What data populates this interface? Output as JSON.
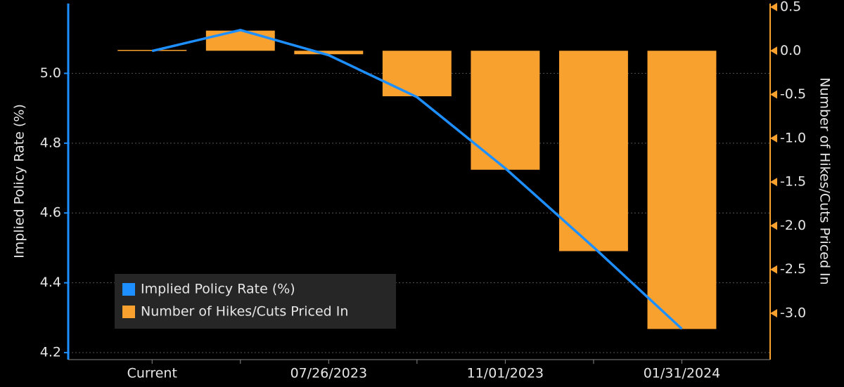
{
  "chart_data": {
    "type": "combo",
    "y_label": "Implied Policy Rate (%)",
    "y2_label": "Number of Hikes/Cuts Priced In",
    "categories": [
      "Current",
      null,
      "07/26/2023",
      null,
      "11/01/2023",
      null,
      "01/31/2024"
    ],
    "series": [
      {
        "name": "Implied Policy Rate (%)",
        "type": "line",
        "color": "#1e8fff",
        "axis": "y",
        "values": [
          5.064,
          5.124,
          5.052,
          4.932,
          4.728,
          4.502,
          4.268
        ]
      },
      {
        "name": "Number of Hikes/Cuts Priced In",
        "type": "bar",
        "color": "#f9a12e",
        "axis": "y2",
        "values": [
          0.01,
          0.23,
          -0.04,
          -0.52,
          -1.36,
          -2.29,
          -3.18
        ]
      }
    ],
    "ylim": [
      4.18,
      5.2
    ],
    "yticks": [
      4.2,
      4.4,
      4.6,
      4.8,
      {
        "value": 5,
        "label": "5.0"
      }
    ],
    "y2lim": [
      -3.53,
      0.54
    ],
    "y2ticks": [
      {
        "value": -3,
        "label": "-3.0"
      },
      -2.5,
      {
        "value": -2,
        "label": "-2.0"
      },
      -1.5,
      {
        "value": -1,
        "label": "-1.0"
      },
      -0.5,
      {
        "value": 0,
        "label": "0.0"
      },
      0.5
    ],
    "grid": true,
    "legend": "lower-left"
  }
}
